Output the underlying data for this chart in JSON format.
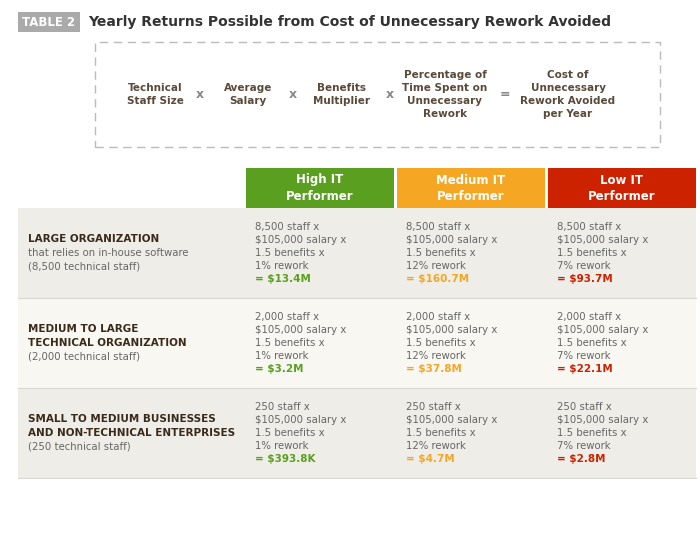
{
  "title_tag": "TABLE 2",
  "title_text": "Yearly Returns Possible from Cost of Unnecessary Rework Avoided",
  "formula_parts": [
    "Technical\nStaff Size",
    "Average\nSalary",
    "Benefits\nMultiplier",
    "Percentage of\nTime Spent on\nUnnecessary\nRework",
    "Cost of\nUnnecessary\nRework Avoided\nper Year"
  ],
  "formula_operators": [
    "x",
    "x",
    "x",
    "="
  ],
  "col_headers": [
    "High IT\nPerformer",
    "Medium IT\nPerformer",
    "Low IT\nPerformer"
  ],
  "col_colors": [
    "#5b9f20",
    "#f5a623",
    "#cc2200"
  ],
  "row_labels": [
    [
      "LARGE ORGANIZATION",
      "that relies on in-house software",
      "(8,500 technical staff)"
    ],
    [
      "MEDIUM TO LARGE",
      "TECHNICAL ORGANIZATION",
      "(2,000 technical staff)"
    ],
    [
      "SMALL TO MEDIUM BUSINESSES",
      "AND NON-TECHNICAL ENTERPRISES",
      "(250 technical staff)"
    ]
  ],
  "row_label_bold": [
    [
      true,
      false,
      false
    ],
    [
      true,
      true,
      false
    ],
    [
      true,
      true,
      false
    ]
  ],
  "cell_data": [
    [
      "8,500 staff x\n$105,000 salary x\n1.5 benefits x\n1% rework\n= $13.4M",
      "8,500 staff x\n$105,000 salary x\n1.5 benefits x\n12% rework\n= $160.7M",
      "8,500 staff x\n$105,000 salary x\n1.5 benefits x\n7% rework\n= $93.7M"
    ],
    [
      "2,000 staff x\n$105,000 salary x\n1.5 benefits x\n1% rework\n= $3.2M",
      "2,000 staff x\n$105,000 salary x\n1.5 benefits x\n12% rework\n= $37.8M",
      "2,000 staff x\n$105,000 salary x\n1.5 benefits x\n7% rework\n= $22.1M"
    ],
    [
      "250 staff x\n$105,000 salary x\n1.5 benefits x\n1% rework\n= $393.8K",
      "250 staff x\n$105,000 salary x\n1.5 benefits x\n12% rework\n= $4.7M",
      "250 staff x\n$105,000 salary x\n1.5 benefits x\n7% rework\n= $2.8M"
    ]
  ],
  "bg_color": "#ffffff",
  "header_text_color": "#ffffff",
  "cell_text_color": "#666666",
  "tag_bg": "#aaaaaa",
  "tag_text": "#ffffff",
  "title_color": "#333333",
  "formula_border": "#bbbbbb",
  "row_colors": [
    "#eeede8",
    "#f8f7f2",
    "#eeede8"
  ],
  "separator_color": "#d8d8d0"
}
